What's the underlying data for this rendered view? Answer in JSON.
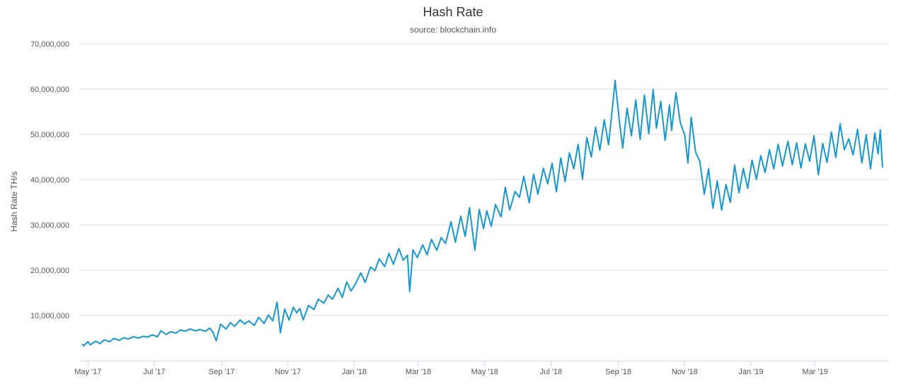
{
  "chart_data": {
    "type": "line",
    "title": "Hash Rate",
    "subtitle": "source: blockchain.info",
    "xlabel": "",
    "ylabel": "Hash Rate TH/s",
    "x_type": "date",
    "xlim": [
      "2017-04-23",
      "2019-05-08"
    ],
    "ylim": [
      0,
      70000000
    ],
    "y_ticks": [
      {
        "value": 10000000,
        "label": "10,000,000"
      },
      {
        "value": 20000000,
        "label": "20,000,000"
      },
      {
        "value": 30000000,
        "label": "30,000,000"
      },
      {
        "value": 40000000,
        "label": "40,000,000"
      },
      {
        "value": 50000000,
        "label": "50,000,000"
      },
      {
        "value": 60000000,
        "label": "60,000,000"
      },
      {
        "value": 70000000,
        "label": "70,000,000"
      }
    ],
    "x_ticks": [
      {
        "date": "2017-05-01",
        "label": "May '17"
      },
      {
        "date": "2017-07-01",
        "label": "Jul '17"
      },
      {
        "date": "2017-09-01",
        "label": "Sep '17"
      },
      {
        "date": "2017-11-01",
        "label": "Nov '17"
      },
      {
        "date": "2018-01-01",
        "label": "Jan '18"
      },
      {
        "date": "2018-03-01",
        "label": "Mar '18"
      },
      {
        "date": "2018-05-01",
        "label": "May '18"
      },
      {
        "date": "2018-07-01",
        "label": "Jul '18"
      },
      {
        "date": "2018-09-01",
        "label": "Sep '18"
      },
      {
        "date": "2018-11-01",
        "label": "Nov '18"
      },
      {
        "date": "2019-01-01",
        "label": "Jan '19"
      },
      {
        "date": "2019-03-01",
        "label": "Mar '19"
      }
    ],
    "grid": true,
    "legend": "none",
    "series": [
      {
        "color": "#1b96cb",
        "x": [
          "2017-04-26",
          "2017-04-27",
          "2017-05-01",
          "2017-05-03",
          "2017-05-08",
          "2017-05-12",
          "2017-05-16",
          "2017-05-21",
          "2017-05-25",
          "2017-05-30",
          "2017-06-03",
          "2017-06-07",
          "2017-06-12",
          "2017-06-16",
          "2017-06-21",
          "2017-06-25",
          "2017-06-29",
          "2017-07-04",
          "2017-07-07",
          "2017-07-12",
          "2017-07-16",
          "2017-07-21",
          "2017-07-25",
          "2017-07-29",
          "2017-08-03",
          "2017-08-08",
          "2017-08-12",
          "2017-08-17",
          "2017-08-21",
          "2017-08-24",
          "2017-08-27",
          "2017-08-31",
          "2017-09-05",
          "2017-09-09",
          "2017-09-13",
          "2017-09-18",
          "2017-09-22",
          "2017-09-26",
          "2017-10-01",
          "2017-10-05",
          "2017-10-10",
          "2017-10-14",
          "2017-10-18",
          "2017-10-22",
          "2017-10-25",
          "2017-10-29",
          "2017-11-02",
          "2017-11-06",
          "2017-11-09",
          "2017-11-12",
          "2017-11-15",
          "2017-11-20",
          "2017-11-25",
          "2017-11-29",
          "2017-12-04",
          "2017-12-08",
          "2017-12-12",
          "2017-12-17",
          "2017-12-21",
          "2017-12-25",
          "2017-12-29",
          "2018-01-02",
          "2018-01-07",
          "2018-01-11",
          "2018-01-16",
          "2018-01-20",
          "2018-01-24",
          "2018-01-29",
          "2018-02-02",
          "2018-02-06",
          "2018-02-11",
          "2018-02-15",
          "2018-02-19",
          "2018-02-21",
          "2018-02-24",
          "2018-02-28",
          "2018-03-05",
          "2018-03-09",
          "2018-03-13",
          "2018-03-18",
          "2018-03-22",
          "2018-03-26",
          "2018-03-31",
          "2018-04-04",
          "2018-04-09",
          "2018-04-13",
          "2018-04-17",
          "2018-04-22",
          "2018-04-26",
          "2018-04-30",
          "2018-05-03",
          "2018-05-07",
          "2018-05-11",
          "2018-05-16",
          "2018-05-20",
          "2018-05-24",
          "2018-05-29",
          "2018-06-02",
          "2018-06-06",
          "2018-06-11",
          "2018-06-15",
          "2018-06-19",
          "2018-06-24",
          "2018-06-28",
          "2018-07-02",
          "2018-07-06",
          "2018-07-10",
          "2018-07-14",
          "2018-07-18",
          "2018-07-22",
          "2018-07-26",
          "2018-07-30",
          "2018-08-03",
          "2018-08-07",
          "2018-08-11",
          "2018-08-15",
          "2018-08-19",
          "2018-08-23",
          "2018-08-27",
          "2018-08-29",
          "2018-09-02",
          "2018-09-05",
          "2018-09-09",
          "2018-09-13",
          "2018-09-17",
          "2018-09-21",
          "2018-09-25",
          "2018-09-29",
          "2018-10-03",
          "2018-10-06",
          "2018-10-10",
          "2018-10-14",
          "2018-10-18",
          "2018-10-20",
          "2018-10-24",
          "2018-10-28",
          "2018-11-01",
          "2018-11-04",
          "2018-11-07",
          "2018-11-11",
          "2018-11-15",
          "2018-11-19",
          "2018-11-23",
          "2018-11-27",
          "2018-12-01",
          "2018-12-05",
          "2018-12-09",
          "2018-12-13",
          "2018-12-17",
          "2018-12-21",
          "2018-12-25",
          "2018-12-29",
          "2019-01-02",
          "2019-01-06",
          "2019-01-10",
          "2019-01-14",
          "2019-01-18",
          "2019-01-22",
          "2019-01-26",
          "2019-01-30",
          "2019-02-04",
          "2019-02-08",
          "2019-02-12",
          "2019-02-16",
          "2019-02-20",
          "2019-02-24",
          "2019-02-28",
          "2019-03-04",
          "2019-03-08",
          "2019-03-12",
          "2019-03-16",
          "2019-03-20",
          "2019-03-24",
          "2019-03-28",
          "2019-04-01",
          "2019-04-05",
          "2019-04-09",
          "2019-04-13",
          "2019-04-17",
          "2019-04-21",
          "2019-04-25",
          "2019-04-28",
          "2019-04-30",
          "2019-05-02"
        ],
        "values": [
          3600000,
          3300000,
          4200000,
          3500000,
          4300000,
          3800000,
          4600000,
          4200000,
          4900000,
          4500000,
          5100000,
          4800000,
          5300000,
          5000000,
          5400000,
          5200000,
          5700000,
          5300000,
          6600000,
          5800000,
          6400000,
          6100000,
          6800000,
          6500000,
          7000000,
          6600000,
          6900000,
          6500000,
          7200000,
          6300000,
          4400000,
          8100000,
          7000000,
          8400000,
          7600000,
          9000000,
          8100000,
          8800000,
          7800000,
          9600000,
          8200000,
          10100000,
          8800000,
          12900000,
          6200000,
          11400000,
          9000000,
          11800000,
          10600000,
          11500000,
          9000000,
          12200000,
          11300000,
          13600000,
          12700000,
          14500000,
          13600000,
          16000000,
          14000000,
          17400000,
          15400000,
          16900000,
          19400000,
          17300000,
          20700000,
          19900000,
          22500000,
          20800000,
          23700000,
          21300000,
          24800000,
          22200000,
          23300000,
          15300000,
          24500000,
          22800000,
          25600000,
          23400000,
          26800000,
          24400000,
          27200000,
          25900000,
          30700000,
          26200000,
          31900000,
          27500000,
          33800000,
          24400000,
          33400000,
          29200000,
          33100000,
          29700000,
          34500000,
          31800000,
          38300000,
          33300000,
          37400000,
          36100000,
          40700000,
          34900000,
          41200000,
          36800000,
          42500000,
          39100000,
          43600000,
          37300000,
          44800000,
          39600000,
          45900000,
          42400000,
          47800000,
          40100000,
          49300000,
          45000000,
          51600000,
          46500000,
          53200000,
          47700000,
          57100000,
          61900000,
          52800000,
          47000000,
          55800000,
          49700000,
          57600000,
          48900000,
          58700000,
          50200000,
          59900000,
          51400000,
          57300000,
          48700000,
          56500000,
          50900000,
          59200000,
          52600000,
          49900000,
          43700000,
          53800000,
          46100000,
          44000000,
          36800000,
          42400000,
          33700000,
          39700000,
          33300000,
          38900000,
          35000000,
          43200000,
          37100000,
          42500000,
          38100000,
          44300000,
          40100000,
          45300000,
          41600000,
          46600000,
          42400000,
          47800000,
          43000000,
          48500000,
          43300000,
          48100000,
          42600000,
          47900000,
          44100000,
          49700000,
          41100000,
          48000000,
          43800000,
          50500000,
          44900000,
          52300000,
          46600000,
          49000000,
          45500000,
          51100000,
          43700000,
          49900000,
          42400000,
          50300000,
          45700000,
          51000000,
          42800000
        ]
      }
    ]
  }
}
